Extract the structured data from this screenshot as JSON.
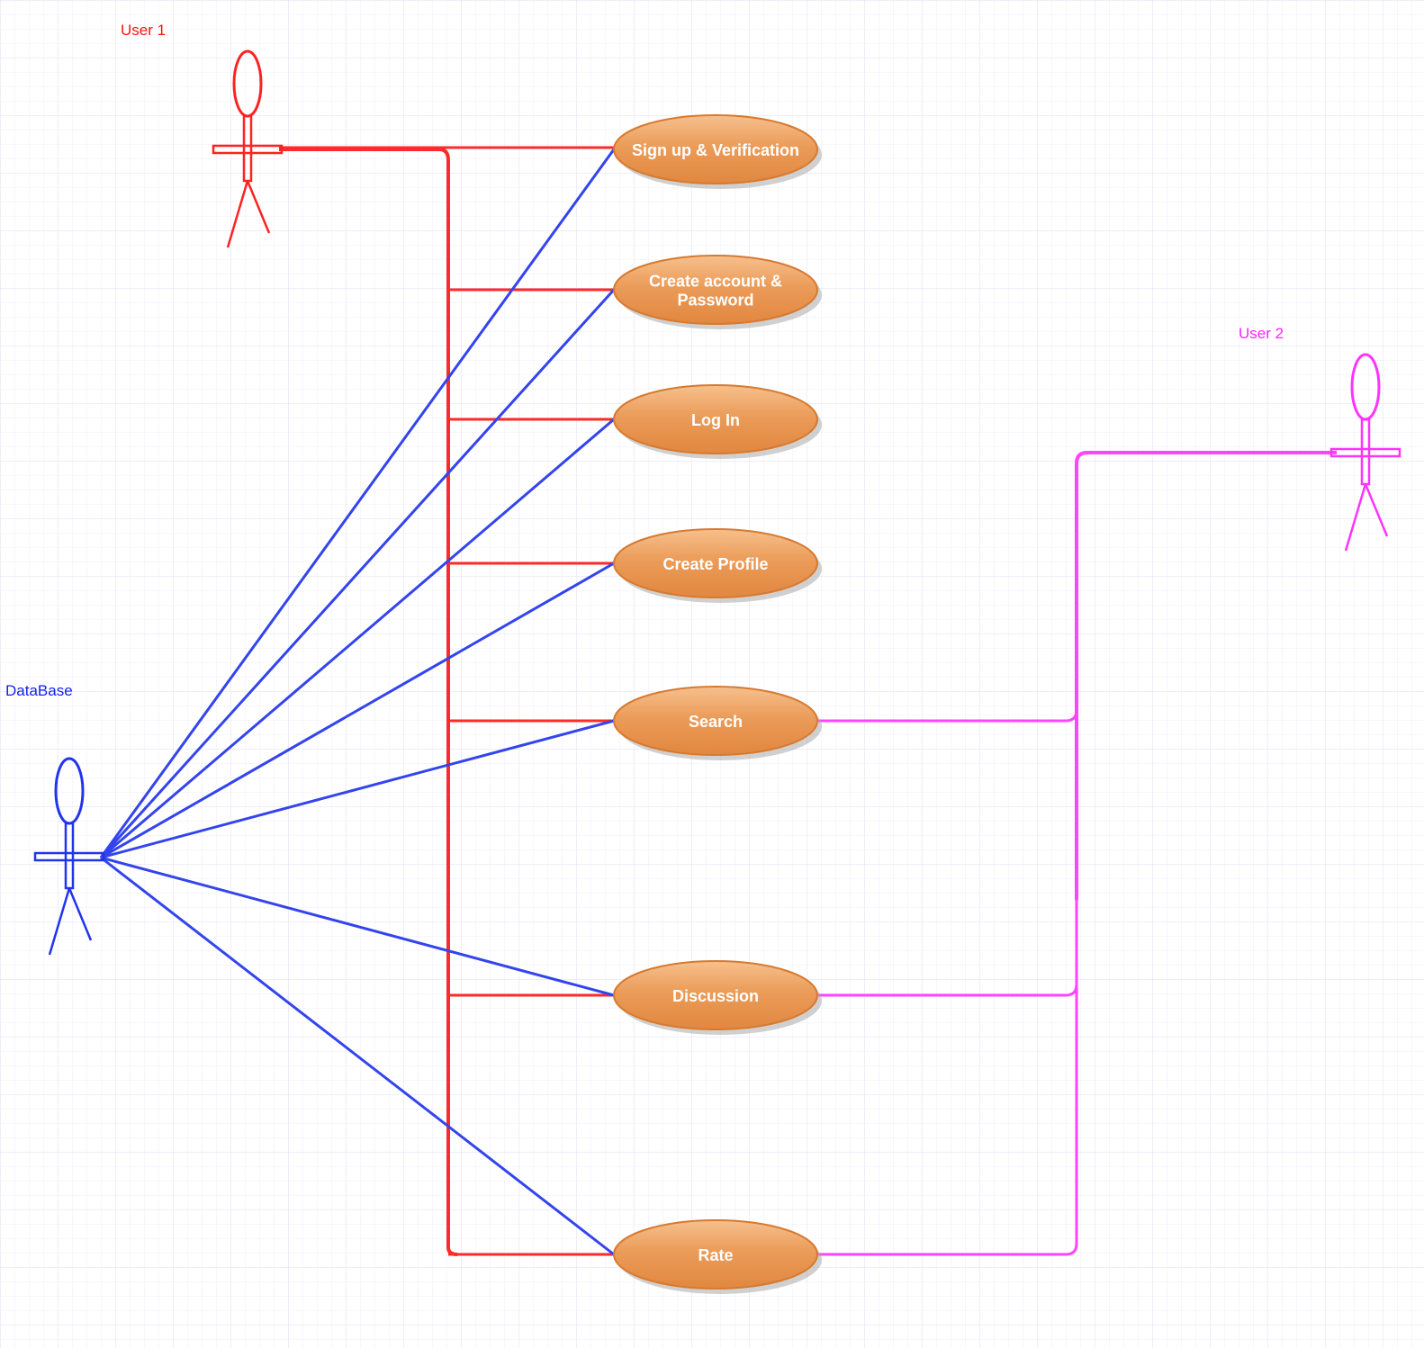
{
  "actors": {
    "user1": {
      "label": "User 1",
      "color": "#ff2222"
    },
    "user2": {
      "label": "User 2",
      "color": "#ff33ff"
    },
    "database": {
      "label": "DataBase",
      "color": "#2233ee"
    }
  },
  "use_cases": {
    "signup": {
      "lines": [
        "Sign up & Verification"
      ]
    },
    "create_account": {
      "lines": [
        "Create account &",
        "Password"
      ]
    },
    "login": {
      "lines": [
        "Log In"
      ]
    },
    "create_profile": {
      "lines": [
        "Create Profile"
      ]
    },
    "search": {
      "lines": [
        "Search"
      ]
    },
    "discussion": {
      "lines": [
        "Discussion"
      ]
    },
    "rate": {
      "lines": [
        "Rate"
      ]
    }
  },
  "associations": {
    "user1": [
      "signup",
      "create_account",
      "login",
      "create_profile",
      "search",
      "discussion",
      "rate"
    ],
    "database": [
      "signup",
      "create_account",
      "login",
      "create_profile",
      "search",
      "discussion",
      "rate"
    ],
    "user2": [
      "search",
      "discussion",
      "rate"
    ]
  },
  "colors": {
    "grid": "#e6e6f7",
    "ellipse_fill": "#e8944c",
    "ellipse_stroke": "#d77a2f",
    "ellipse_text": "#ffffff"
  }
}
